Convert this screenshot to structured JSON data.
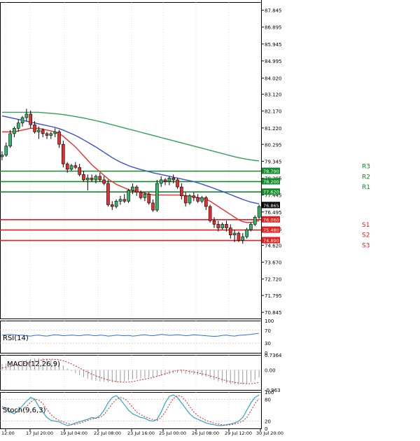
{
  "chart_data": {
    "type": "candlestick",
    "instrument_note": "Price chart with pivot levels, moving averages, RSI, MACD and Stochastic sub-panels",
    "price_axis": {
      "ticks": [
        87.845,
        86.895,
        85.945,
        84.995,
        84.02,
        83.12,
        82.17,
        81.22,
        80.295,
        79.345,
        78.395,
        77.445,
        76.495,
        75.545,
        74.62,
        73.67,
        72.72,
        71.795,
        70.845
      ],
      "ylim": [
        70.5,
        88.3
      ]
    },
    "x_axis": {
      "ticks": [
        "12:00",
        "17 Jul 20:00",
        "19 Jul 04:00",
        "22 Jul 08:00",
        "23 Jul 16:00",
        "25 Jul 00:00",
        "26 Jul 08:00",
        "29 Jul 12:00",
        "30 Jul 20:00"
      ]
    },
    "candles": [
      [
        79.6,
        79.9,
        79.4,
        79.7
      ],
      [
        79.7,
        80.4,
        79.6,
        80.2
      ],
      [
        80.2,
        81.1,
        80.1,
        80.9
      ],
      [
        80.9,
        81.3,
        80.7,
        81.2
      ],
      [
        81.2,
        81.7,
        81.0,
        81.5
      ],
      [
        81.5,
        81.9,
        81.3,
        81.8
      ],
      [
        81.8,
        82.3,
        81.6,
        82.0
      ],
      [
        82.0,
        82.2,
        81.2,
        81.4
      ],
      [
        81.4,
        81.6,
        80.9,
        81.0
      ],
      [
        81.0,
        81.3,
        80.6,
        81.1
      ],
      [
        81.1,
        81.2,
        80.7,
        80.9
      ],
      [
        80.9,
        81.0,
        80.6,
        80.8
      ],
      [
        80.8,
        81.0,
        80.6,
        80.9
      ],
      [
        80.9,
        81.2,
        80.7,
        81.0
      ],
      [
        81.0,
        81.1,
        80.1,
        80.3
      ],
      [
        80.3,
        80.5,
        79.0,
        79.2
      ],
      [
        79.2,
        79.3,
        78.7,
        78.9
      ],
      [
        78.9,
        79.2,
        78.8,
        79.1
      ],
      [
        79.1,
        79.3,
        78.9,
        79.0
      ],
      [
        79.0,
        79.2,
        78.5,
        78.6
      ],
      [
        78.6,
        78.8,
        78.2,
        78.3
      ],
      [
        78.3,
        78.6,
        77.7,
        78.4
      ],
      [
        78.4,
        78.6,
        78.2,
        78.3
      ],
      [
        78.3,
        78.6,
        78.1,
        78.5
      ],
      [
        78.5,
        78.7,
        78.2,
        78.3
      ],
      [
        78.3,
        78.5,
        78.0,
        78.1
      ],
      [
        78.1,
        78.3,
        76.8,
        76.9
      ],
      [
        76.9,
        77.1,
        76.6,
        76.8
      ],
      [
        76.8,
        77.2,
        76.7,
        77.1
      ],
      [
        77.1,
        77.4,
        76.9,
        77.2
      ],
      [
        77.2,
        77.5,
        77.0,
        77.1
      ],
      [
        77.1,
        77.8,
        77.0,
        77.7
      ],
      [
        77.7,
        78.1,
        77.5,
        77.9
      ],
      [
        77.9,
        78.0,
        77.4,
        77.6
      ],
      [
        77.6,
        77.7,
        77.2,
        77.3
      ],
      [
        77.3,
        77.6,
        77.1,
        77.5
      ],
      [
        77.5,
        77.6,
        76.9,
        77.0
      ],
      [
        77.0,
        77.2,
        76.5,
        76.6
      ],
      [
        76.6,
        78.3,
        76.5,
        78.1
      ],
      [
        78.1,
        78.5,
        77.9,
        78.3
      ],
      [
        78.3,
        78.4,
        78.0,
        78.2
      ],
      [
        78.2,
        78.5,
        78.0,
        78.4
      ],
      [
        78.4,
        78.6,
        78.1,
        78.3
      ],
      [
        78.3,
        78.4,
        77.8,
        77.9
      ],
      [
        77.9,
        78.1,
        77.2,
        77.4
      ],
      [
        77.4,
        77.6,
        76.8,
        77.0
      ],
      [
        77.0,
        77.5,
        76.9,
        77.4
      ],
      [
        77.4,
        77.6,
        77.1,
        77.3
      ],
      [
        77.3,
        77.5,
        77.0,
        77.1
      ],
      [
        77.1,
        77.4,
        77.0,
        77.3
      ],
      [
        77.3,
        77.4,
        76.6,
        76.8
      ],
      [
        76.8,
        76.9,
        75.9,
        76.0
      ],
      [
        76.0,
        76.2,
        75.6,
        75.8
      ],
      [
        75.8,
        76.0,
        75.4,
        75.6
      ],
      [
        75.6,
        75.9,
        75.5,
        75.8
      ],
      [
        75.8,
        76.0,
        75.4,
        75.6
      ],
      [
        75.6,
        75.8,
        75.0,
        75.2
      ],
      [
        75.2,
        75.5,
        74.8,
        75.3
      ],
      [
        75.3,
        75.4,
        74.8,
        74.9
      ],
      [
        74.9,
        75.3,
        74.7,
        75.1
      ],
      [
        75.1,
        75.6,
        75.0,
        75.5
      ],
      [
        75.5,
        75.9,
        75.4,
        75.8
      ],
      [
        75.8,
        76.3,
        75.7,
        76.2
      ],
      [
        76.2,
        76.9,
        76.1,
        76.8
      ]
    ],
    "moving_averages": [
      {
        "name": "red-ma",
        "color": "#e53030",
        "values": [
          81.0,
          81.0,
          81.0,
          81.0,
          81.05,
          81.1,
          81.15,
          81.2,
          81.2,
          81.2,
          81.15,
          81.1,
          81.05,
          81.0,
          80.9,
          80.75,
          80.55,
          80.35,
          80.15,
          79.9,
          79.65,
          79.4,
          79.15,
          78.95,
          78.75,
          78.55,
          78.35,
          78.2,
          78.05,
          77.95,
          77.85,
          77.75,
          77.7,
          77.65,
          77.6,
          77.55,
          77.5,
          77.45,
          77.45,
          77.45,
          77.45,
          77.45,
          77.45,
          77.45,
          77.45,
          77.4,
          77.4,
          77.35,
          77.3,
          77.25,
          77.2,
          77.1,
          76.95,
          76.8,
          76.65,
          76.5,
          76.35,
          76.2,
          76.05,
          75.95,
          75.9,
          75.9,
          75.95,
          76.0
        ]
      },
      {
        "name": "blue-ma",
        "color": "#3a4fd6",
        "values": [
          81.9,
          81.85,
          81.8,
          81.75,
          81.7,
          81.65,
          81.6,
          81.55,
          81.5,
          81.45,
          81.4,
          81.35,
          81.3,
          81.25,
          81.18,
          81.1,
          81.0,
          80.9,
          80.8,
          80.68,
          80.55,
          80.42,
          80.28,
          80.15,
          80.0,
          79.85,
          79.7,
          79.55,
          79.42,
          79.3,
          79.2,
          79.1,
          79.02,
          78.95,
          78.88,
          78.82,
          78.76,
          78.7,
          78.65,
          78.6,
          78.55,
          78.5,
          78.45,
          78.4,
          78.35,
          78.3,
          78.25,
          78.2,
          78.13,
          78.06,
          77.98,
          77.9,
          77.82,
          77.73,
          77.65,
          77.56,
          77.47,
          77.38,
          77.29,
          77.2,
          77.12,
          77.05,
          77.0,
          76.95
        ]
      },
      {
        "name": "green-ma",
        "color": "#2fa25a",
        "values": [
          82.1,
          82.1,
          82.1,
          82.1,
          82.1,
          82.1,
          82.1,
          82.1,
          82.1,
          82.1,
          82.08,
          82.06,
          82.04,
          82.02,
          82.0,
          81.97,
          81.94,
          81.9,
          81.86,
          81.82,
          81.78,
          81.73,
          81.68,
          81.63,
          81.58,
          81.52,
          81.46,
          81.4,
          81.34,
          81.28,
          81.22,
          81.16,
          81.1,
          81.04,
          80.98,
          80.92,
          80.86,
          80.8,
          80.74,
          80.68,
          80.62,
          80.56,
          80.5,
          80.44,
          80.38,
          80.32,
          80.26,
          80.2,
          80.14,
          80.08,
          80.02,
          79.96,
          79.9,
          79.84,
          79.78,
          79.72,
          79.66,
          79.6,
          79.55,
          79.5,
          79.46,
          79.42,
          79.39,
          79.37
        ]
      }
    ],
    "levels": [
      {
        "name": "R3",
        "value": 78.79,
        "tag": "78.790",
        "color": "#138a2a"
      },
      {
        "name": "R2",
        "value": 78.2,
        "tag": "78.200",
        "color": "#138a2a"
      },
      {
        "name": "R1",
        "value": 77.62,
        "tag": "77.620",
        "color": "#138a2a"
      },
      {
        "name": "S1",
        "value": 76.06,
        "tag": "76.060",
        "color": "#e01f1f"
      },
      {
        "name": "S2",
        "value": 75.48,
        "tag": "75.480",
        "color": "#e01f1f"
      },
      {
        "name": "S3",
        "value": 74.89,
        "tag": "74.890",
        "color": "#e01f1f"
      }
    ],
    "current_price": {
      "value": 76.865,
      "tag": "76.865"
    },
    "rsi": {
      "label": "RSI(14)",
      "ticks": [
        "100",
        "70",
        "30",
        "0"
      ],
      "levels": [
        70,
        30
      ],
      "values": [
        55,
        56,
        57,
        56,
        54,
        55,
        53,
        52,
        54,
        55,
        53,
        52,
        54,
        56,
        55,
        53,
        54,
        55,
        54,
        53,
        55,
        56,
        54,
        53,
        55,
        54,
        52,
        53,
        55,
        54,
        53,
        54,
        52,
        53,
        55,
        56,
        54,
        53,
        55,
        57,
        56,
        54,
        55,
        56,
        55,
        53,
        54,
        56,
        55,
        54,
        53,
        52,
        51,
        52,
        54,
        55,
        53,
        52,
        54,
        55,
        56,
        57,
        59,
        61
      ]
    },
    "macd": {
      "label": "MACD(12,26,9)",
      "ticks": [
        "0.7364",
        "0.00",
        "-0.963"
      ],
      "histogram": [
        0.3,
        0.32,
        0.34,
        0.38,
        0.42,
        0.46,
        0.5,
        0.54,
        0.56,
        0.58,
        0.58,
        0.56,
        0.52,
        0.45,
        0.35,
        0.22,
        0.08,
        -0.05,
        -0.15,
        -0.25,
        -0.35,
        -0.42,
        -0.48,
        -0.52,
        -0.55,
        -0.56,
        -0.58,
        -0.6,
        -0.6,
        -0.58,
        -0.55,
        -0.5,
        -0.45,
        -0.42,
        -0.4,
        -0.38,
        -0.36,
        -0.36,
        -0.32,
        -0.28,
        -0.24,
        -0.2,
        -0.16,
        -0.14,
        -0.15,
        -0.18,
        -0.2,
        -0.22,
        -0.24,
        -0.28,
        -0.32,
        -0.4,
        -0.48,
        -0.55,
        -0.6,
        -0.64,
        -0.68,
        -0.7,
        -0.72,
        -0.7,
        -0.66,
        -0.58,
        -0.48,
        -0.36
      ],
      "signal": [
        0.1,
        0.14,
        0.18,
        0.22,
        0.26,
        0.3,
        0.34,
        0.38,
        0.42,
        0.46,
        0.5,
        0.52,
        0.53,
        0.52,
        0.5,
        0.45,
        0.38,
        0.3,
        0.2,
        0.1,
        0.0,
        -0.1,
        -0.2,
        -0.28,
        -0.35,
        -0.42,
        -0.48,
        -0.52,
        -0.56,
        -0.58,
        -0.59,
        -0.58,
        -0.56,
        -0.52,
        -0.48,
        -0.44,
        -0.4,
        -0.36,
        -0.3,
        -0.24,
        -0.18,
        -0.12,
        -0.06,
        -0.02,
        0.0,
        -0.02,
        -0.06,
        -0.1,
        -0.14,
        -0.18,
        -0.22,
        -0.28,
        -0.34,
        -0.4,
        -0.46,
        -0.52,
        -0.56,
        -0.6,
        -0.63,
        -0.65,
        -0.66,
        -0.66,
        -0.64,
        -0.6
      ]
    },
    "stochastic": {
      "label": "Stoch(9,6,3)",
      "ticks": [
        "100",
        "80",
        "20",
        "0"
      ],
      "levels": [
        80,
        20
      ],
      "k": [
        60,
        55,
        45,
        40,
        50,
        62,
        75,
        85,
        80,
        60,
        45,
        30,
        22,
        20,
        18,
        12,
        8,
        10,
        15,
        18,
        22,
        25,
        30,
        28,
        35,
        50,
        70,
        85,
        90,
        80,
        65,
        50,
        40,
        35,
        30,
        28,
        22,
        20,
        25,
        45,
        70,
        88,
        92,
        85,
        70,
        55,
        40,
        30,
        25,
        20,
        15,
        12,
        10,
        8,
        8,
        10,
        12,
        15,
        20,
        30,
        50,
        70,
        85,
        92
      ],
      "d": [
        55,
        55,
        50,
        45,
        45,
        50,
        60,
        72,
        80,
        78,
        68,
        52,
        38,
        28,
        22,
        18,
        14,
        11,
        11,
        14,
        18,
        22,
        26,
        28,
        30,
        38,
        52,
        68,
        80,
        85,
        82,
        72,
        58,
        45,
        38,
        32,
        28,
        24,
        22,
        30,
        45,
        65,
        82,
        90,
        88,
        76,
        60,
        45,
        35,
        28,
        22,
        18,
        14,
        12,
        10,
        9,
        10,
        12,
        15,
        20,
        30,
        48,
        68,
        82
      ]
    }
  }
}
